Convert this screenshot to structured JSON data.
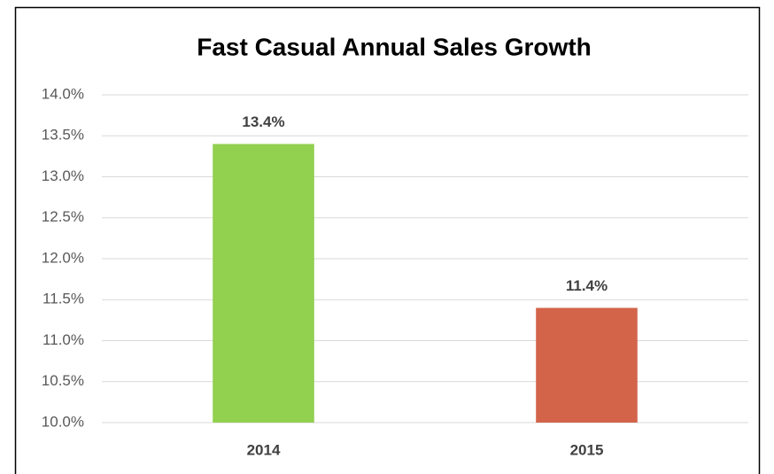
{
  "chart_data": {
    "type": "bar",
    "title": "Fast Casual Annual Sales Growth",
    "categories": [
      "2014",
      "2015"
    ],
    "values": [
      13.4,
      11.4
    ],
    "value_labels": [
      "13.4%",
      "11.4%"
    ],
    "colors": [
      "#92d050",
      "#d3644a"
    ],
    "ylim": [
      10,
      14
    ],
    "yticks": [
      {
        "value": 10,
        "label": "10.0%"
      },
      {
        "value": 10.5,
        "label": "10.5%"
      },
      {
        "value": 11,
        "label": "11.0%"
      },
      {
        "value": 11.5,
        "label": "11.5%"
      },
      {
        "value": 12,
        "label": "12.0%"
      },
      {
        "value": 12.5,
        "label": "12.5%"
      },
      {
        "value": 13,
        "label": "13.0%"
      },
      {
        "value": 13.5,
        "label": "13.5%"
      },
      {
        "value": 14,
        "label": "14.0%"
      }
    ],
    "grid": true
  }
}
